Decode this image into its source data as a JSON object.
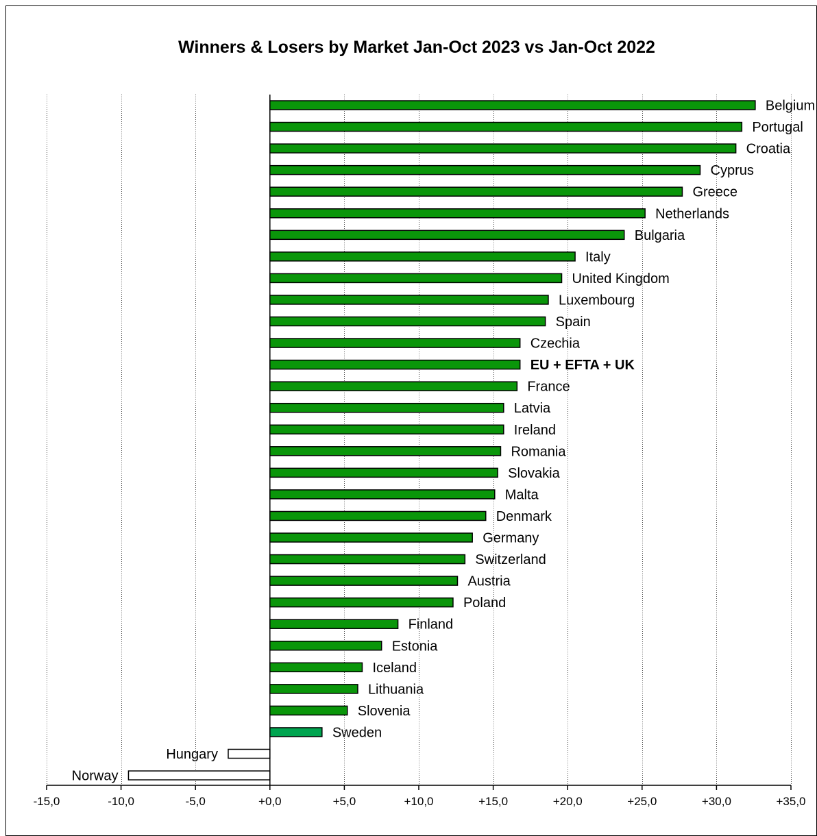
{
  "chart_data": {
    "type": "bar",
    "orientation": "horizontal",
    "title": "Winners & Losers by Market  Jan-Oct 2023 vs Jan-Oct 2022",
    "xlabel": "",
    "ylabel": "",
    "xlim": [
      -15,
      35
    ],
    "x_ticks": [
      "-15,0",
      "-10,0",
      "-5,0",
      "+0,0",
      "+5,0",
      "+10,0",
      "+15,0",
      "+20,0",
      "+25,0",
      "+30,0",
      "+35,0"
    ],
    "grid": "vertical dotted",
    "legend": "none",
    "colors": {
      "positive": "#0a960a",
      "highlight": "#00a550",
      "negative": "#ffffff",
      "outline": "#000000"
    },
    "categories": [
      "Belgium",
      "Portugal",
      "Croatia",
      "Cyprus",
      "Greece",
      "Netherlands",
      "Bulgaria",
      "Italy",
      "United Kingdom",
      "Luxembourg",
      "Spain",
      "Czechia",
      "EU + EFTA + UK",
      "France",
      "Latvia",
      "Ireland",
      "Romania",
      "Slovakia",
      "Malta",
      "Denmark",
      "Germany",
      "Switzerland",
      "Austria",
      "Poland",
      "Finland",
      "Estonia",
      "Iceland",
      "Lithuania",
      "Slovenia",
      "Sweden",
      "Hungary",
      "Norway"
    ],
    "values": [
      32.6,
      31.7,
      31.3,
      28.9,
      27.7,
      25.2,
      23.8,
      20.5,
      19.6,
      18.7,
      18.5,
      16.8,
      16.8,
      16.6,
      15.7,
      15.7,
      15.5,
      15.3,
      15.1,
      14.5,
      13.6,
      13.1,
      12.6,
      12.3,
      8.6,
      7.5,
      6.2,
      5.9,
      5.2,
      3.5,
      -2.8,
      -9.5
    ],
    "bold_categories": [
      "EU + EFTA + UK"
    ],
    "highlight_categories": [
      "Sweden"
    ]
  }
}
